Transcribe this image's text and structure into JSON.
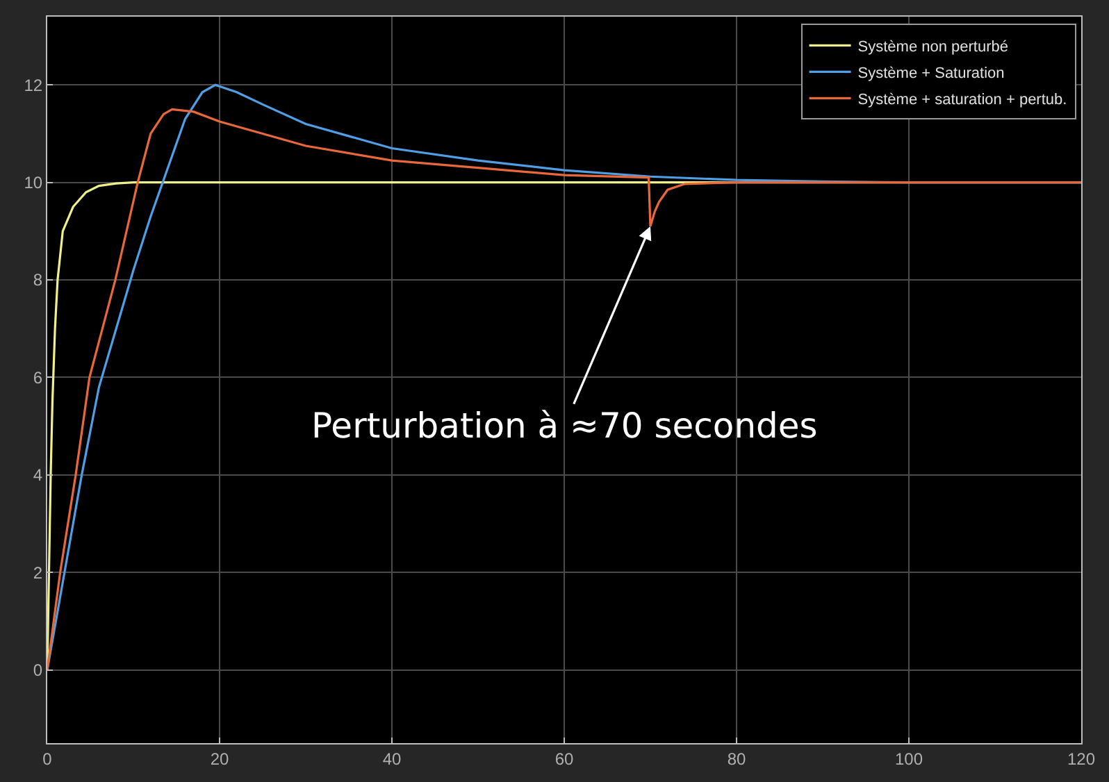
{
  "chart_data": {
    "type": "line",
    "xlim": [
      0,
      120
    ],
    "ylim": [
      -1.5,
      13.4
    ],
    "xticks": [
      0,
      20,
      40,
      60,
      80,
      100,
      120
    ],
    "yticks": [
      0,
      2,
      4,
      6,
      8,
      10,
      12
    ],
    "grid": true,
    "legend": "top right",
    "marker": "none",
    "line_style": "solid",
    "series": [
      {
        "name": "Système non perturbé",
        "color": "#f0f08a",
        "x": [
          0,
          0.2,
          0.4,
          0.6,
          0.9,
          1.2,
          1.8,
          3,
          4.5,
          6,
          8,
          10,
          120
        ],
        "values": [
          0,
          2,
          4,
          5.5,
          7,
          8,
          9,
          9.5,
          9.8,
          9.93,
          9.98,
          10,
          10
        ]
      },
      {
        "name": "Système + Saturation",
        "color": "#4f9fe6",
        "x": [
          0,
          2,
          4,
          6,
          8,
          10,
          12,
          13.4,
          16,
          18,
          19.5,
          22,
          25,
          30,
          40,
          50,
          60,
          70,
          80,
          90,
          100,
          120
        ],
        "values": [
          0,
          2,
          4,
          5.8,
          7,
          8.2,
          9.3,
          10,
          11.3,
          11.85,
          12,
          11.85,
          11.6,
          11.2,
          10.7,
          10.45,
          10.25,
          10.12,
          10.05,
          10.02,
          10,
          10
        ]
      },
      {
        "name": "Système + saturation + pertub.",
        "color": "#e8683a",
        "x": [
          0,
          1.5,
          3.3,
          4.9,
          7.9,
          10.5,
          12,
          13.5,
          14.5,
          17,
          20,
          30,
          40,
          50,
          60,
          69.8,
          70,
          70.5,
          71,
          72,
          74,
          80,
          120
        ],
        "values": [
          0,
          2,
          4,
          6,
          8,
          10,
          11,
          11.4,
          11.5,
          11.45,
          11.25,
          10.75,
          10.45,
          10.3,
          10.15,
          10.1,
          9.1,
          9.4,
          9.6,
          9.85,
          9.97,
          10,
          10
        ]
      }
    ],
    "annotations": [
      {
        "text": "Perturbation à ≈70 secondes",
        "x": 70,
        "y": 9.1
      }
    ]
  }
}
